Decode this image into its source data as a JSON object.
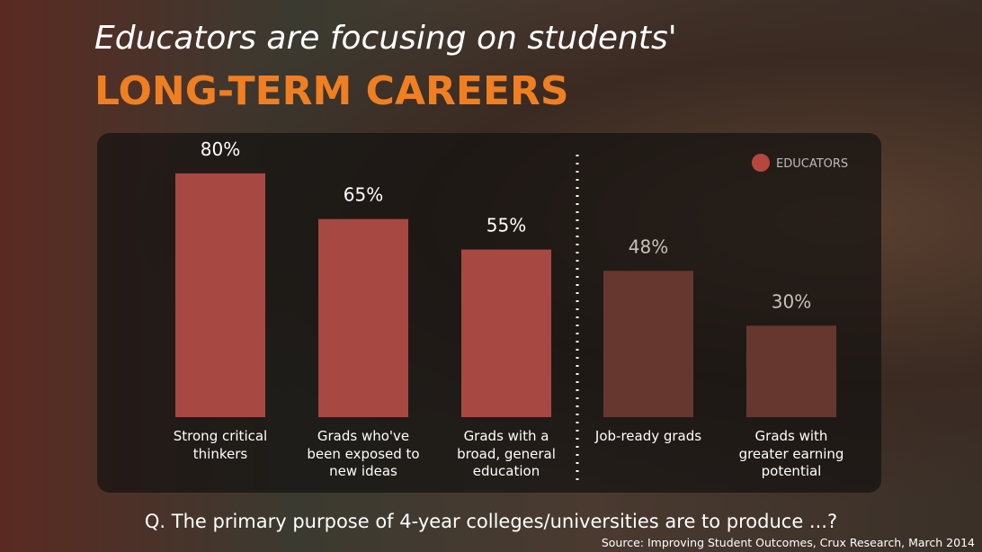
{
  "chart_data": {
    "type": "bar",
    "title": "Educators are focusing on students'",
    "subtitle": "LONG-TERM CAREERS",
    "categories": [
      "Strong critical thinkers",
      "Grads who've been exposed to new ideas",
      "Grads with a broad, general education",
      "Job-ready grads",
      "Grads with greater earning potential"
    ],
    "series": [
      {
        "name": "EDUCATORS",
        "color": "#b5473f",
        "values": [
          80,
          65,
          55,
          48,
          30
        ],
        "value_labels": [
          "80%",
          "65%",
          "55%",
          "48%",
          "30%"
        ],
        "colors": [
          "#a84842",
          "#a84842",
          "#a84842",
          "#66372f",
          "#66372f"
        ],
        "label_colors": [
          "#ffffff",
          "#ffffff",
          "#ffffff",
          "#c9c0bc",
          "#c9c0bc"
        ]
      }
    ],
    "question": "Q. The primary purpose of 4-year colleges/universities are to produce ...?",
    "source": "Source: Improving Student Outcomes, Crux Research, March 2014"
  }
}
